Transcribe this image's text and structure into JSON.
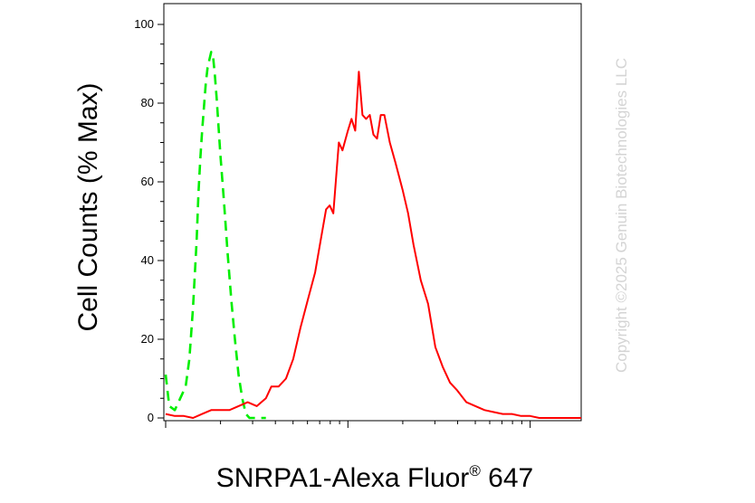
{
  "chart_data": {
    "type": "line",
    "title": "",
    "xlabel": "SNRPA1-Alexa Fluor",
    "xlabel_superscript": "®",
    "xlabel_suffix": " 647",
    "ylabel": "Cell Counts (% Max)",
    "y_tick_labels": [
      "0",
      "20",
      "40",
      "60",
      "80",
      "100"
    ],
    "y_ticks": [
      0,
      20,
      40,
      60,
      80,
      100
    ],
    "ylim": [
      0,
      105
    ],
    "x_scale": "log",
    "x_tick_labels_shown": false,
    "grid": false,
    "legend": "none",
    "series": [
      {
        "style": "dashed",
        "color": "#00ee00",
        "x": [
          0.0,
          0.02,
          0.05,
          0.08,
          0.11,
          0.13,
          0.15,
          0.17,
          0.18,
          0.19,
          0.2,
          0.21,
          0.22,
          0.23,
          0.24,
          0.25,
          0.26,
          0.27,
          0.28,
          0.29,
          0.3,
          0.32,
          0.34,
          0.36,
          0.38,
          0.4,
          0.42,
          0.44,
          0.46,
          0.48,
          0.5,
          0.52,
          0.55
        ],
        "y": [
          11,
          3,
          2,
          5,
          8,
          15,
          28,
          45,
          57,
          66,
          73,
          79,
          85,
          89,
          91,
          93,
          92,
          87,
          81,
          74,
          67,
          55,
          42,
          30,
          20,
          11,
          5,
          1,
          0,
          0,
          0,
          0,
          0
        ]
      },
      {
        "style": "solid",
        "color": "#ff0000",
        "x": [
          0.0,
          0.05,
          0.1,
          0.15,
          0.2,
          0.25,
          0.3,
          0.35,
          0.4,
          0.45,
          0.5,
          0.55,
          0.58,
          0.62,
          0.66,
          0.7,
          0.74,
          0.78,
          0.82,
          0.85,
          0.88,
          0.9,
          0.92,
          0.95,
          0.97,
          1.0,
          1.02,
          1.04,
          1.06,
          1.08,
          1.1,
          1.12,
          1.14,
          1.16,
          1.18,
          1.2,
          1.23,
          1.26,
          1.3,
          1.33,
          1.36,
          1.4,
          1.44,
          1.48,
          1.52,
          1.56,
          1.6,
          1.65,
          1.7,
          1.75,
          1.8,
          1.85,
          1.9,
          1.95,
          2.0,
          2.05,
          2.1,
          2.15,
          2.2,
          2.28
        ],
        "y": [
          1,
          0.5,
          0.5,
          0,
          1,
          2,
          2,
          2,
          3,
          4,
          3,
          5,
          8,
          8,
          10,
          15,
          23,
          30,
          37,
          45,
          53,
          54,
          52,
          70,
          68,
          73,
          76,
          73,
          88,
          77,
          76,
          77,
          72,
          71,
          77,
          77,
          70,
          65,
          58,
          52,
          44,
          35,
          29,
          18,
          13,
          9,
          7,
          4,
          3,
          2,
          1.5,
          1,
          1,
          0.5,
          0.5,
          0,
          0,
          0,
          0,
          0
        ]
      }
    ]
  },
  "watermark": "Copyright ©2025 Genuin Biotechnologies LLC"
}
